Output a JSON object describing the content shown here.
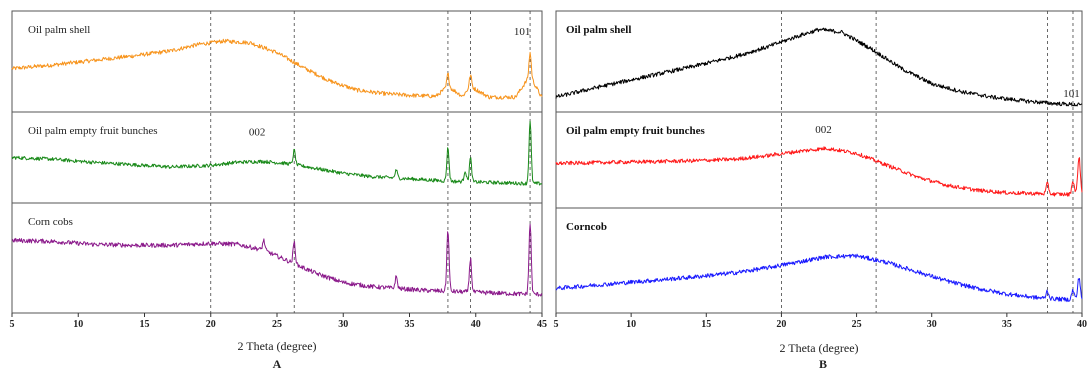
{
  "chart_data": [
    {
      "type": "line",
      "panel_label": "A",
      "xlabel": "2 Theta (degree)",
      "xlim": [
        5,
        45
      ],
      "xticks": [
        5,
        10,
        15,
        20,
        25,
        30,
        35,
        40,
        45
      ],
      "reference_lines": [
        20,
        26.3,
        37.9,
        39.6,
        44.1
      ],
      "annotations": [
        {
          "text": "101",
          "subplot": 0,
          "x": 43.5,
          "y": 0.8
        },
        {
          "text": "002",
          "subplot": 1,
          "x": 23.5,
          "y": 0.78
        }
      ],
      "subplots": [
        {
          "name": "Oil palm shell",
          "color": "#f7941d",
          "x": [
            5,
            8,
            11,
            14,
            17,
            19,
            21,
            23,
            25,
            27,
            29,
            31,
            33,
            35,
            37,
            37.9,
            39,
            39.6,
            41,
            43,
            44.1,
            45
          ],
          "y": [
            0.42,
            0.46,
            0.51,
            0.56,
            0.62,
            0.69,
            0.73,
            0.71,
            0.6,
            0.43,
            0.28,
            0.18,
            0.14,
            0.12,
            0.11,
            0.22,
            0.11,
            0.22,
            0.1,
            0.1,
            0.34,
            0.09
          ],
          "peaks": [
            {
              "x": 37.9,
              "h": 0.14
            },
            {
              "x": 39.6,
              "h": 0.13
            },
            {
              "x": 44.1,
              "h": 0.26
            }
          ]
        },
        {
          "name": "Oil palm empty fruit bunches",
          "color": "#1a8a1a",
          "x": [
            5,
            8,
            11,
            14,
            17,
            20,
            22,
            24,
            26,
            28,
            30,
            32,
            34,
            36,
            38,
            40,
            42,
            44,
            45
          ],
          "y": [
            0.5,
            0.48,
            0.44,
            0.41,
            0.38,
            0.4,
            0.44,
            0.45,
            0.42,
            0.36,
            0.3,
            0.26,
            0.24,
            0.22,
            0.2,
            0.19,
            0.18,
            0.17,
            0.17
          ],
          "peaks": [
            {
              "x": 26.3,
              "h": 0.18
            },
            {
              "x": 34.0,
              "h": 0.1
            },
            {
              "x": 37.9,
              "h": 0.42
            },
            {
              "x": 39.2,
              "h": 0.14
            },
            {
              "x": 39.6,
              "h": 0.3
            },
            {
              "x": 44.1,
              "h": 0.78
            }
          ]
        },
        {
          "name": "Corn cobs",
          "color": "#8b1a8b",
          "x": [
            5,
            8,
            11,
            14,
            17,
            20,
            22,
            24,
            26,
            28,
            30,
            32,
            34,
            36,
            38,
            40,
            42,
            44,
            45
          ],
          "y": [
            0.68,
            0.67,
            0.64,
            0.63,
            0.63,
            0.65,
            0.64,
            0.58,
            0.46,
            0.34,
            0.25,
            0.21,
            0.19,
            0.17,
            0.16,
            0.15,
            0.14,
            0.13,
            0.13
          ],
          "peaks": [
            {
              "x": 24.0,
              "h": 0.1
            },
            {
              "x": 26.3,
              "h": 0.22
            },
            {
              "x": 34.0,
              "h": 0.12
            },
            {
              "x": 37.9,
              "h": 0.62
            },
            {
              "x": 39.6,
              "h": 0.34
            },
            {
              "x": 44.1,
              "h": 0.72
            }
          ]
        }
      ]
    },
    {
      "type": "line",
      "panel_label": "B",
      "xlabel": "2 Theta (degree)",
      "xlim": [
        5,
        40
      ],
      "xticks": [
        5,
        10,
        15,
        20,
        25,
        30,
        35,
        40
      ],
      "reference_lines": [
        20,
        26.3,
        37.7,
        39.4
      ],
      "annotations": [
        {
          "text": "101",
          "subplot": 0,
          "x": 39.3,
          "y": 0.1
        },
        {
          "text": "002",
          "subplot": 1,
          "x": 22.8,
          "y": 0.82
        }
      ],
      "subplots": [
        {
          "name": "Oil palm shell",
          "color": "#000000",
          "x": [
            5,
            8,
            11,
            14,
            17,
            19,
            21,
            22.5,
            24,
            26,
            28,
            30,
            32,
            34,
            36,
            38,
            40
          ],
          "y": [
            0.1,
            0.22,
            0.33,
            0.44,
            0.56,
            0.66,
            0.78,
            0.86,
            0.83,
            0.64,
            0.42,
            0.25,
            0.16,
            0.1,
            0.06,
            0.03,
            0.01
          ],
          "peaks": []
        },
        {
          "name": "Oil palm empty fruit bunches",
          "color": "#ff1a1a",
          "x": [
            5,
            8,
            11,
            14,
            17,
            19,
            21,
            23,
            25,
            27,
            29,
            31,
            33,
            35,
            37,
            39,
            40
          ],
          "y": [
            0.46,
            0.47,
            0.48,
            0.49,
            0.51,
            0.55,
            0.6,
            0.64,
            0.58,
            0.44,
            0.3,
            0.2,
            0.14,
            0.11,
            0.1,
            0.09,
            0.09
          ],
          "peaks": [
            {
              "x": 37.7,
              "h": 0.12
            },
            {
              "x": 39.4,
              "h": 0.16
            },
            {
              "x": 39.8,
              "h": 0.45
            }
          ]
        },
        {
          "name": "Corncob",
          "color": "#1a1aff",
          "x": [
            5,
            8,
            11,
            14,
            17,
            19,
            21,
            23,
            25,
            27,
            29,
            31,
            33,
            35,
            37,
            39,
            40
          ],
          "y": [
            0.2,
            0.24,
            0.28,
            0.32,
            0.37,
            0.42,
            0.48,
            0.54,
            0.55,
            0.48,
            0.38,
            0.28,
            0.2,
            0.14,
            0.1,
            0.08,
            0.08
          ],
          "peaks": [
            {
              "x": 37.7,
              "h": 0.08
            },
            {
              "x": 39.4,
              "h": 0.1
            },
            {
              "x": 39.8,
              "h": 0.24
            }
          ]
        }
      ]
    }
  ]
}
